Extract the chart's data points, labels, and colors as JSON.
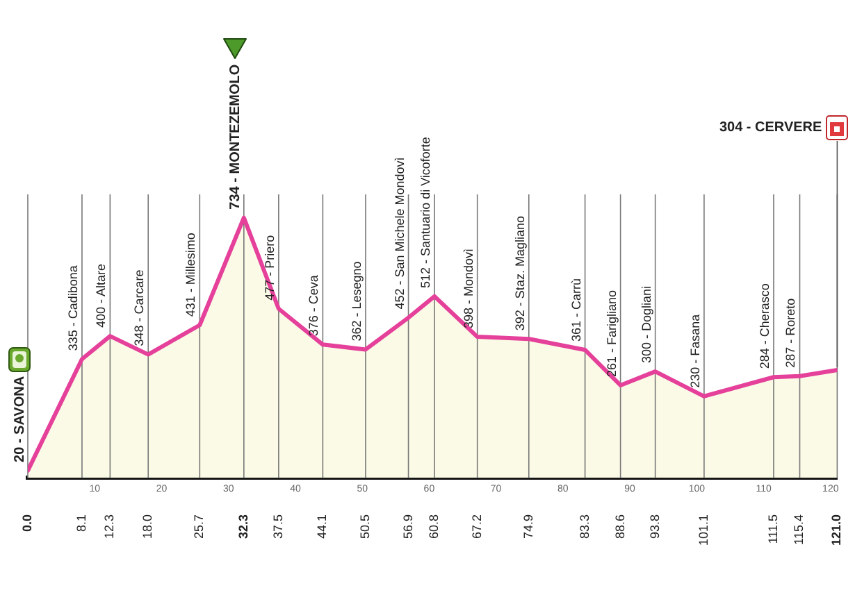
{
  "chart_data": {
    "type": "area",
    "x": [
      0,
      8.1,
      12.3,
      18.0,
      25.7,
      32.3,
      37.5,
      44.1,
      50.5,
      56.9,
      60.8,
      67.2,
      74.9,
      83.3,
      88.6,
      93.8,
      101.1,
      111.5,
      115.4,
      121
    ],
    "values": [
      20,
      335,
      400,
      348,
      431,
      734,
      477,
      376,
      362,
      452,
      512,
      398,
      392,
      361,
      261,
      300,
      230,
      284,
      287,
      304
    ],
    "color": "#e5409a",
    "value_labels": [
      "20 - SAVONA",
      "335 - Cadibona",
      "400 - Altare",
      "348 - Carcare",
      "431 - Millesimo",
      "734 - MONTEZEMOLO",
      "477 - Priero",
      "376 - Ceva",
      "362 - Lesegno",
      "452 - San Michele Mondovì",
      "512 - Santuario di Vicoforte",
      "398 - Mondovì",
      "392 - Staz. Magliano",
      "361 - Carrù",
      "261 - Farigliano",
      "300 - Dogliani",
      "230 - Fasana",
      "284 - Cherasco",
      "287 - Roreto",
      "304 - CERVERE"
    ],
    "xlim": [
      0,
      121
    ],
    "xticks": [
      {
        "value": 0,
        "label": "0.0"
      },
      8.1,
      12.3,
      {
        "value": 18,
        "label": "18.0"
      },
      25.7,
      32.3,
      37.5,
      44.1,
      50.5,
      56.9,
      60.8,
      67.2,
      74.9,
      83.3,
      88.6,
      93.8,
      101.1,
      111.5,
      115.4,
      {
        "value": 121,
        "label": "121.0"
      }
    ],
    "x2lim": [
      0,
      121
    ],
    "x2ticks": [
      10,
      20,
      30,
      40,
      50,
      60,
      70,
      80,
      90,
      100,
      110,
      120
    ],
    "tick_labels": "x",
    "grid": "x",
    "legend": false,
    "marker": "none"
  }
}
